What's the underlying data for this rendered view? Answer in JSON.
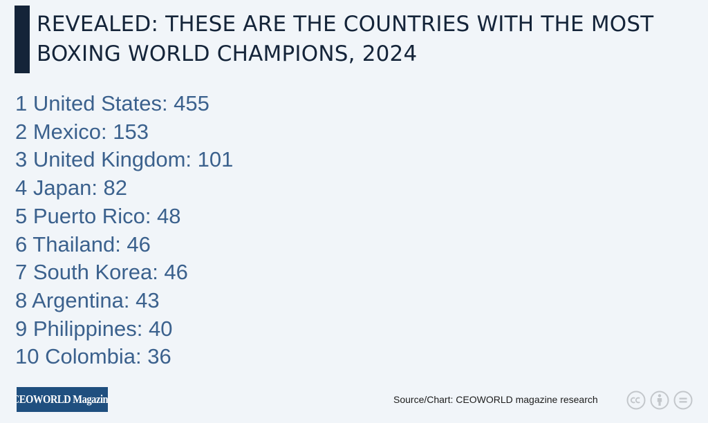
{
  "header": {
    "title_line_1": "REVEALED: THESE ARE THE COUNTRIES WITH THE MOST",
    "title_line_2": "BOXING WORLD CHAMPIONS, 2024"
  },
  "ranking": [
    {
      "text": "1 United States: 455"
    },
    {
      "text": "2 Mexico: 153"
    },
    {
      "text": "3 United Kingdom: 101"
    },
    {
      "text": "4 Japan: 82"
    },
    {
      "text": "5 Puerto Rico: 48"
    },
    {
      "text": "6 Thailand: 46"
    },
    {
      "text": "7 South Korea: 46"
    },
    {
      "text": "8 Argentina: 43"
    },
    {
      "text": "9 Philippines: 40"
    },
    {
      "text": "10 Colombia: 36"
    }
  ],
  "footer": {
    "logo_text": "CEOWORLD Magazine",
    "source": "Source/Chart: CEOWORLD magazine research",
    "license_icons": [
      "creative-commons-icon",
      "attribution-icon",
      "no-derivatives-icon"
    ]
  },
  "colors": {
    "background": "#f1f5f9",
    "title": "#142439",
    "accent_bar": "#142439",
    "list_text": "#3b618d",
    "logo_bg": "#1f4f7f",
    "icon": "#c3c7cb"
  }
}
